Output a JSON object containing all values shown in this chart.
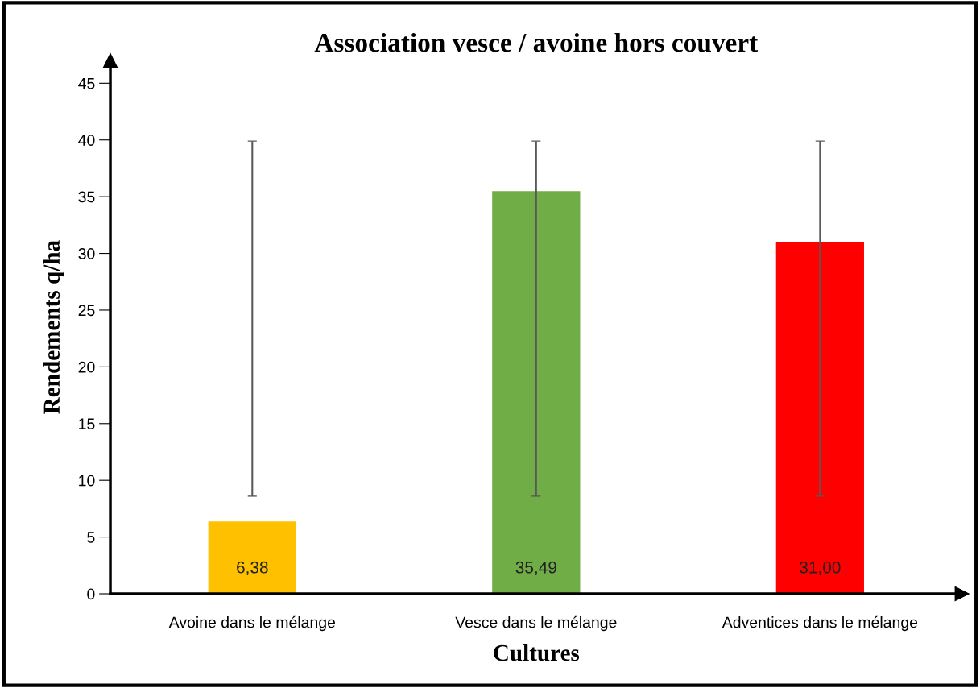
{
  "chart_data": {
    "type": "bar",
    "title": "Association vesce / avoine hors couvert",
    "xlabel": "Cultures",
    "ylabel": "Rendements q/ha",
    "categories": [
      "Avoine dans le mélange",
      "Vesce dans le mélange",
      "Adventices dans le mélange"
    ],
    "values": [
      6.38,
      35.49,
      31.0
    ],
    "colors": [
      "#ffc000",
      "#70ad47",
      "#ff0000"
    ],
    "value_labels": [
      "6,38",
      "35,49",
      "31,00"
    ],
    "errors": [
      [
        8.6,
        39.9
      ],
      [
        8.6,
        39.9
      ],
      [
        8.6,
        39.9
      ]
    ],
    "ylim": [
      0,
      47
    ],
    "yticks": [
      0,
      5,
      10,
      15,
      20,
      25,
      30,
      35,
      40,
      45
    ],
    "grid": false,
    "legend": false
  }
}
